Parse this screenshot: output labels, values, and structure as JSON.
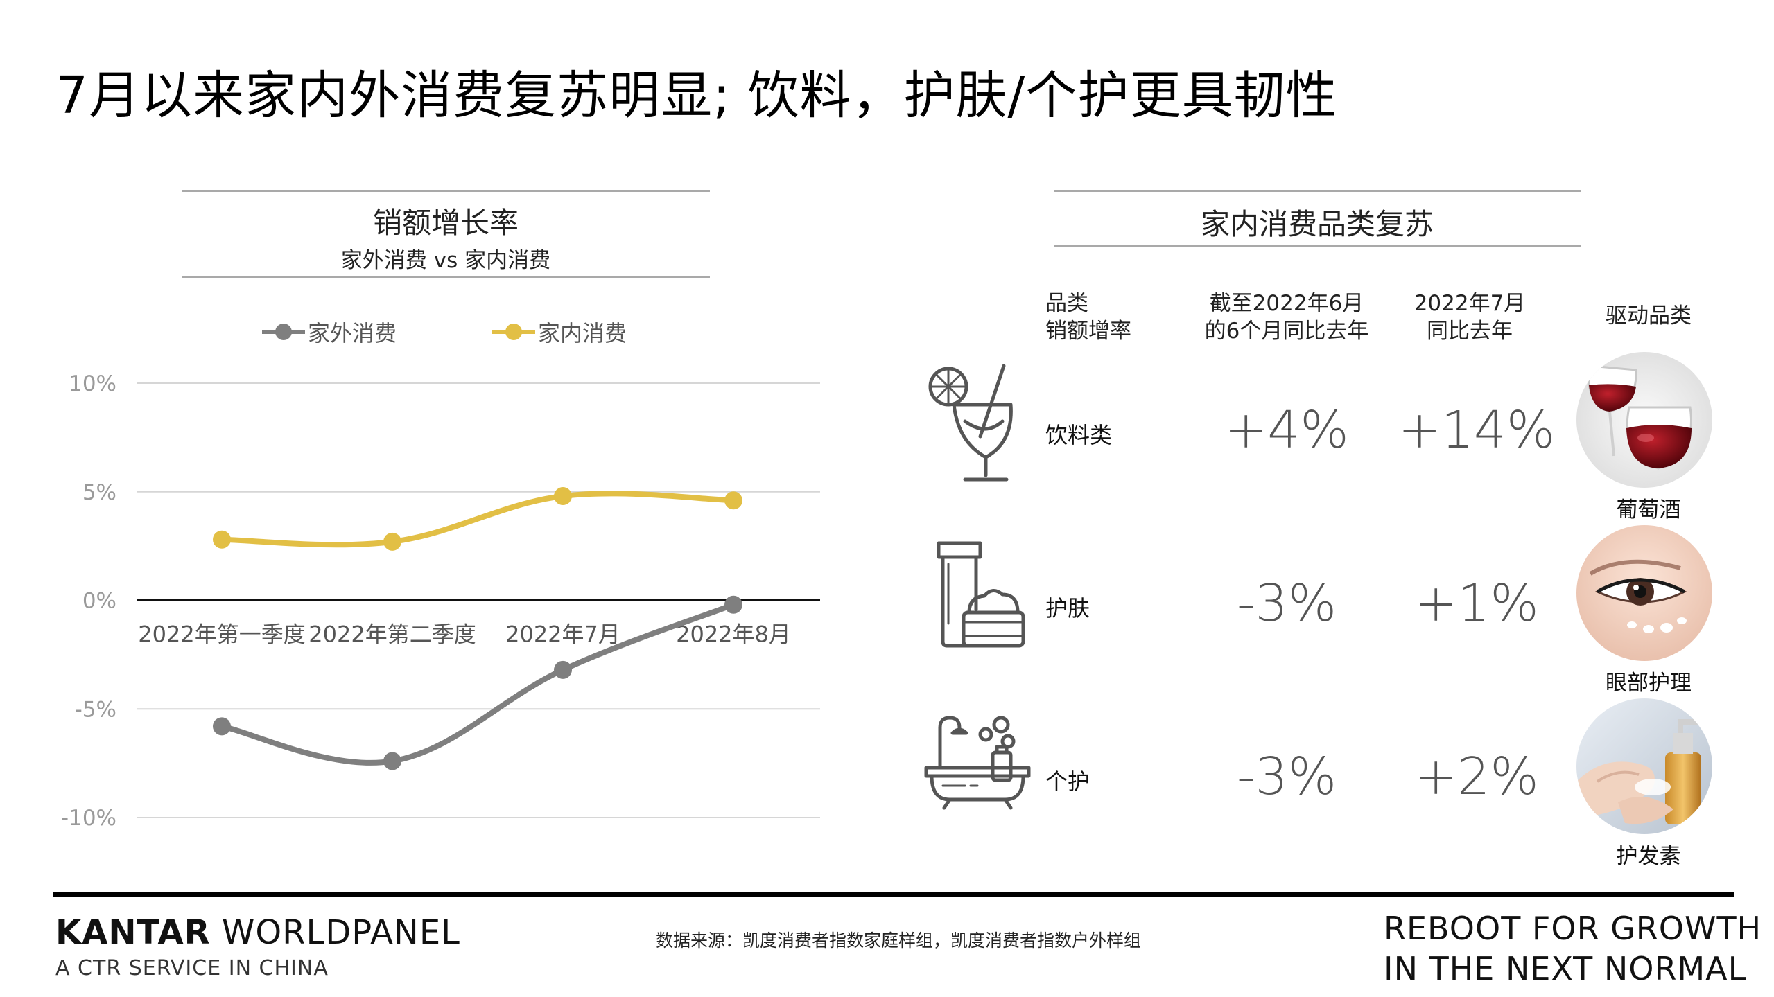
{
  "page": {
    "title": "7月以来家内外消费复苏明显; 饮料，护肤/个护更具韧性"
  },
  "chart_data": {
    "type": "line",
    "title": "销额增长率",
    "subtitle": "家外消费 vs 家内消费",
    "categories": [
      "2022年第一季度",
      "2022年第二季度",
      "2022年7月",
      "2022年8月"
    ],
    "series": [
      {
        "name": "家外消费",
        "color": "#7f7f7f",
        "values": [
          -5.8,
          -7.4,
          -3.2,
          -0.2
        ]
      },
      {
        "name": "家内消费",
        "color": "#e2bf45",
        "values": [
          2.8,
          2.7,
          4.8,
          4.6
        ]
      }
    ],
    "yticks": [
      10,
      5,
      0,
      -5,
      -10
    ],
    "ytick_labels": [
      "10%",
      "5%",
      "0%",
      "-5%",
      "-10%"
    ],
    "ylim": [
      -10,
      10
    ],
    "grid": true,
    "legend": "top"
  },
  "right_panel": {
    "title": "家内消费品类复苏",
    "headers": {
      "category_line1": "品类",
      "category_line2": "销额增率",
      "h1_line1": "截至2022年6月",
      "h1_line2": "的6个月同比去年",
      "h2_line1": "2022年7月",
      "h2_line2": "同比去年",
      "driver": "驱动品类"
    },
    "rows": [
      {
        "icon": "cocktail-glass-icon",
        "name": "饮料类",
        "h1": "+4%",
        "h2": "+14%",
        "driver": "葡萄酒"
      },
      {
        "icon": "skincare-tube-jar-icon",
        "name": "护肤",
        "h1": "-3%",
        "h2": "+1%",
        "driver": "眼部护理"
      },
      {
        "icon": "bathtub-icon",
        "name": "个护",
        "h1": "-3%",
        "h2": "+2%",
        "driver": "护发素"
      }
    ]
  },
  "footer": {
    "brand_bold": "KANTAR",
    "brand_rest": " WORLDPANEL",
    "brand_sub": "A CTR SERVICE IN CHINA",
    "source": "数据来源：凯度消费者指数家庭样组，凯度消费者指数户外样组",
    "tagline1": "REBOOT FOR GROWTH",
    "tagline2": "IN THE NEXT NORMAL"
  }
}
